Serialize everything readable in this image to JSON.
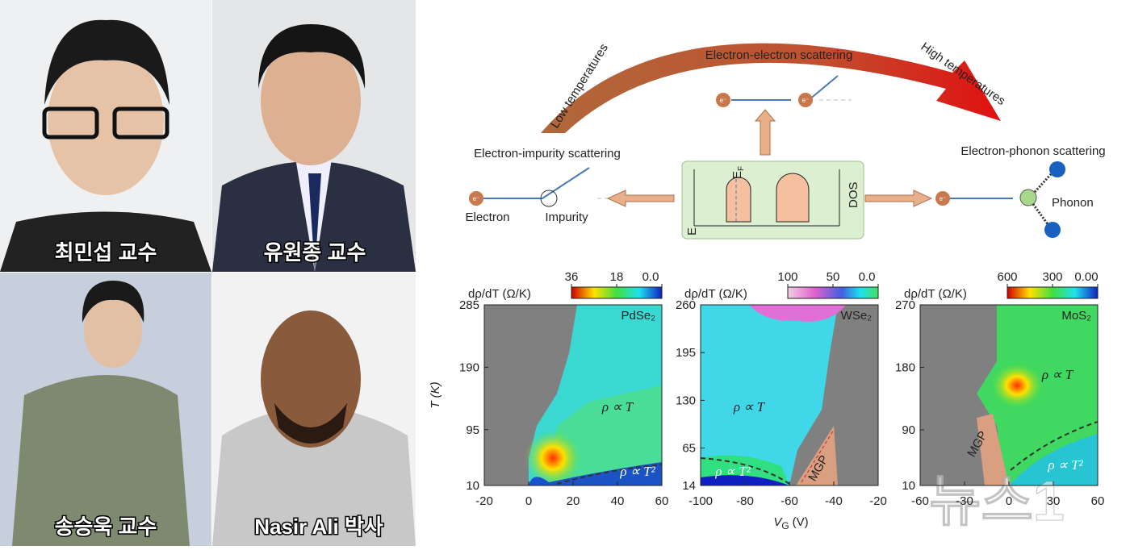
{
  "photos": [
    {
      "caption": "최민섭 교수"
    },
    {
      "caption": "유원종 교수"
    },
    {
      "caption": "송승욱 교수"
    },
    {
      "caption": "Nasir Ali 박사"
    }
  ],
  "diagram": {
    "low": "Low temperatures",
    "high": "High temperatures",
    "ee": "Electron-electron scattering",
    "ei": "Electron-impurity scattering",
    "ep": "Electron-phonon scattering",
    "electron": "Electron",
    "impurity": "Impurity",
    "phonon": "Phonon",
    "dos": "DOS",
    "e_axis": "E",
    "ef": {
      "main": "E",
      "sub": "F"
    },
    "e_label": "e⁻"
  },
  "panels": [
    {
      "material": "PdSe₂",
      "colorbar_label": "dρ/dT (Ω/K)",
      "colorbar_ticks": [
        36,
        18,
        {
          "value": 0,
          "label": "0.0"
        }
      ],
      "xticks": [
        -20,
        0,
        20,
        40,
        60
      ],
      "yticks": [
        10,
        95,
        190,
        285
      ],
      "regions": [
        "ρ ∝ T",
        "ρ ∝ T²"
      ]
    },
    {
      "material": "WSe₂",
      "colorbar_label": "dρ/dT (Ω/K)",
      "colorbar_ticks": [
        100,
        50,
        {
          "value": 0,
          "label": "0.0"
        }
      ],
      "xticks": [
        -100,
        -80,
        -60,
        -40,
        -20
      ],
      "yticks": [
        14,
        65,
        130,
        195,
        260
      ],
      "regions": [
        "ρ ∝ T",
        "ρ ∝ T²",
        "MGP"
      ]
    },
    {
      "material": "MoS₂",
      "colorbar_label": "dρ/dT (Ω/K)",
      "colorbar_ticks": [
        600,
        300,
        {
          "value": 0,
          "label": "0.00"
        }
      ],
      "xticks": [
        -60,
        -30,
        0,
        30,
        60
      ],
      "yticks": [
        10,
        90,
        180,
        270
      ],
      "regions": [
        "ρ ∝ T",
        "ρ ∝ T²",
        "MGP"
      ]
    }
  ],
  "y_label": "T (K)",
  "x_label": {
    "main": "V",
    "sub": "G",
    "unit": "(V)"
  },
  "watermark": "뉴스1"
}
